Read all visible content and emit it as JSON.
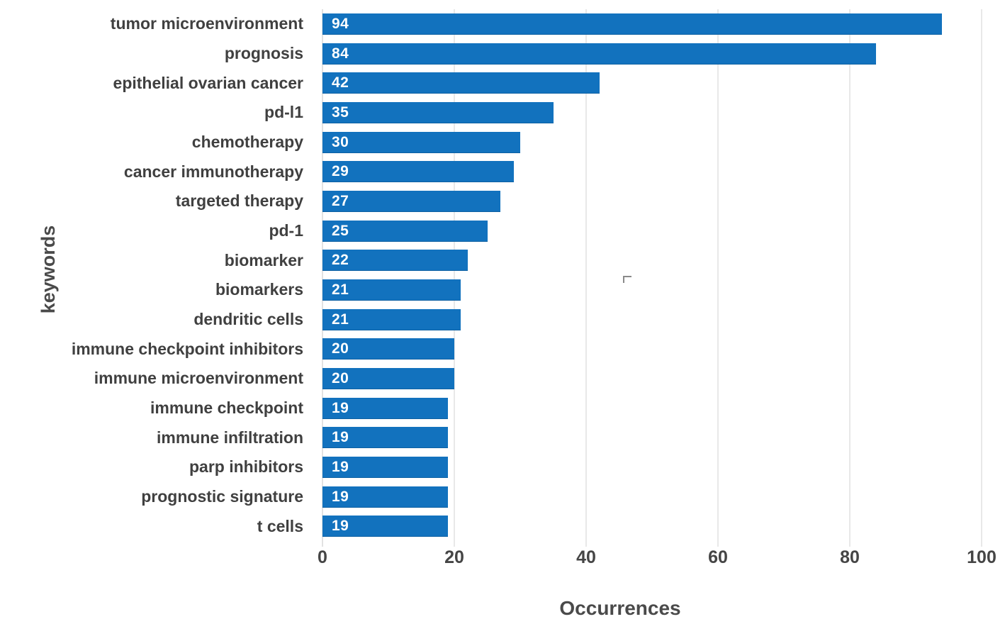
{
  "chart_data": {
    "type": "bar",
    "orientation": "horizontal",
    "title": "",
    "xlabel": "Occurrences",
    "ylabel": "keywords",
    "categories": [
      "tumor microenvironment",
      "prognosis",
      "epithelial ovarian cancer",
      "pd-l1",
      "chemotherapy",
      "cancer immunotherapy",
      "targeted therapy",
      "pd-1",
      "biomarker",
      "biomarkers",
      "dendritic cells",
      "immune checkpoint inhibitors",
      "immune microenvironment",
      "immune checkpoint",
      "immune infiltration",
      "parp inhibitors",
      "prognostic signature",
      "t cells"
    ],
    "values": [
      94,
      84,
      42,
      35,
      30,
      29,
      27,
      25,
      22,
      21,
      21,
      20,
      20,
      19,
      19,
      19,
      19,
      19
    ],
    "data_labels_shown": true,
    "xlim": [
      0,
      100
    ],
    "xticks": [
      0,
      20,
      40,
      60,
      80,
      100
    ],
    "grid": "vertical-only",
    "legend": "none",
    "colors": {
      "bar": "#1272BE",
      "bar_value_text": "#ffffff",
      "category_text": "#404040",
      "tick_text": "#454545",
      "axis_title_text": "#4a4a4a",
      "gridline": "#d2d2d2",
      "zero_axis_line": "#c4c4c4",
      "background": "#ffffff"
    }
  }
}
